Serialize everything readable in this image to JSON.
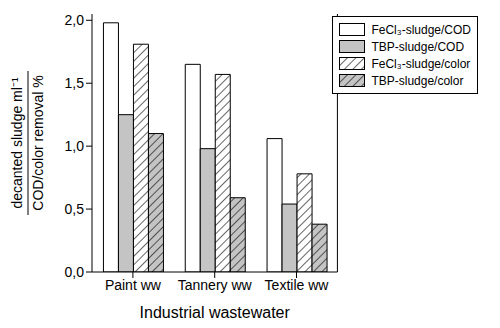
{
  "chart_data": {
    "type": "bar",
    "categories": [
      "Paint ww",
      "Tannery ww",
      "Textile ww"
    ],
    "xlabel": "Industrial wastewater",
    "ylabel": {
      "numerator": "decanted sludge ml⁻¹",
      "denominator": "COD/color removal %"
    },
    "series": [
      {
        "name": "FeCl₃-sludge/COD",
        "color": "#ffffff",
        "values": [
          1.98,
          1.65,
          1.06
        ]
      },
      {
        "name": "TBP-sludge/COD",
        "color": "#c4c4c4",
        "values": [
          1.25,
          0.98,
          0.54
        ]
      },
      {
        "name": "FeCl₃-sludge/color",
        "color": "#ffffff",
        "values": [
          1.81,
          1.57,
          0.78
        ]
      },
      {
        "name": "TBP-sludge/color",
        "color": "#c4c4c4",
        "values": [
          1.1,
          0.59,
          0.38
        ]
      }
    ],
    "ylim": [
      0,
      2.05
    ],
    "yticks": [
      {
        "value": 0,
        "label": "0,0"
      },
      {
        "value": 0.5,
        "label": "0,5"
      },
      {
        "value": 1,
        "label": "1,0"
      },
      {
        "value": 1.5,
        "label": "1,5"
      },
      {
        "value": 2,
        "label": "2,0"
      }
    ],
    "legend": "upper right",
    "grid": false
  }
}
